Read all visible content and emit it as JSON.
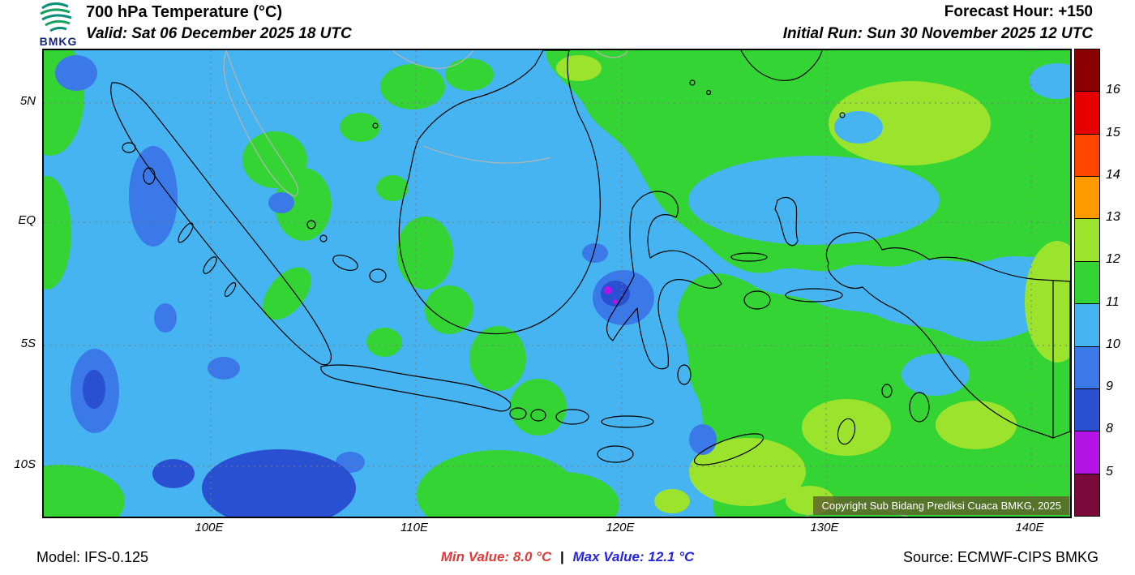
{
  "header": {
    "logo_text": "BMKG",
    "title": "700 hPa Temperature (°C)",
    "valid": "Valid: Sat 06 December 2025 18 UTC",
    "forecast_hour": "Forecast Hour: +150",
    "initial_run": "Initial Run: Sun 30 November 2025 12 UTC"
  },
  "map": {
    "lat_labels": [
      "5N",
      "EQ",
      "5S",
      "10S"
    ],
    "lon_labels": [
      "100E",
      "110E",
      "120E",
      "130E",
      "140E"
    ],
    "copyright": "Copyright Sub Bidang Prediksi Cuaca BMKG, 2025"
  },
  "colorbar": {
    "labels": [
      "16",
      "15",
      "14",
      "13",
      "12",
      "11",
      "10",
      "9",
      "8",
      "5"
    ],
    "colors": [
      "#8b0000",
      "#e60000",
      "#ff4500",
      "#ff9900",
      "#9ce32e",
      "#35d435",
      "#46b4f0",
      "#3b78e8",
      "#2a50d2",
      "#b414e6",
      "#7a0a3c"
    ]
  },
  "footer": {
    "model": "Model: IFS-0.125",
    "min_label": "Min Value: 8.0 °C",
    "separator": "|",
    "max_label": "Max Value: 12.1 °C",
    "source": "Source: ECMWF-CIPS BMKG"
  },
  "chart_data": {
    "type": "heatmap",
    "title": "700 hPa Temperature (°C)",
    "legend_scale_c": [
      16,
      15,
      14,
      13,
      12,
      11,
      10,
      9,
      8,
      5
    ],
    "min_value_c": 8.0,
    "max_value_c": 12.1,
    "x_ticks": [
      "100E",
      "110E",
      "120E",
      "130E",
      "140E"
    ],
    "y_ticks": [
      "5N",
      "EQ",
      "5S",
      "10S"
    ],
    "dominant_classes_c": {
      "ocean_west": "10-11",
      "east_region": "11-12",
      "warm_patches": "12-13",
      "cool_patches": "9-10",
      "coolest_patch": "8-9"
    }
  }
}
